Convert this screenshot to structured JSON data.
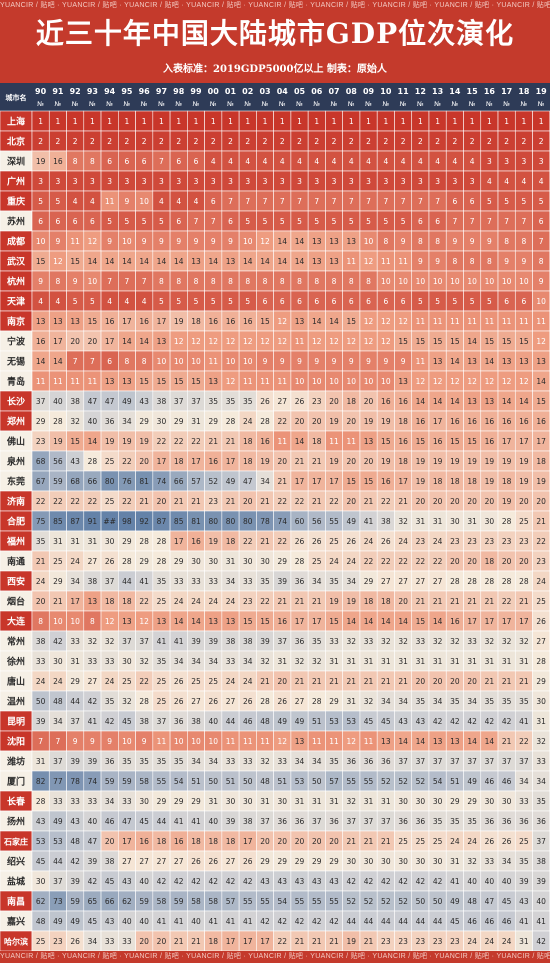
{
  "watermark": "YUANCIR / 贴吧 · ",
  "chart_data": {
    "type": "heatmap",
    "title": "近三十年中国大陆城市GDP位次演化",
    "subtitle": "入表标准：2019GDP5000亿以上  制表：原始人",
    "corner_label": "城市名",
    "rank_mark": "№",
    "x": [
      "90",
      "91",
      "92",
      "93",
      "94",
      "95",
      "96",
      "97",
      "98",
      "99",
      "00",
      "01",
      "02",
      "03",
      "04",
      "05",
      "06",
      "07",
      "08",
      "09",
      "10",
      "11",
      "12",
      "13",
      "14",
      "15",
      "16",
      "17",
      "18",
      "19"
    ],
    "cities": [
      "上海",
      "北京",
      "深圳",
      "广州",
      "重庆",
      "苏州",
      "成都",
      "武汉",
      "杭州",
      "天津",
      "南京",
      "宁波",
      "无锡",
      "青岛",
      "长沙",
      "郑州",
      "佛山",
      "泉州",
      "东莞",
      "济南",
      "合肥",
      "福州",
      "南通",
      "西安",
      "烟台",
      "大连",
      "常州",
      "徐州",
      "唐山",
      "温州",
      "昆明",
      "沈阳",
      "潍坊",
      "厦门",
      "长春",
      "扬州",
      "石家庄",
      "绍兴",
      "盐城",
      "南昌",
      "嘉兴",
      "哈尔滨"
    ],
    "ranks": [
      [
        "1",
        "1",
        "1",
        "1",
        "1",
        "1",
        "1",
        "1",
        "1",
        "1",
        "1",
        "1",
        "1",
        "1",
        "1",
        "1",
        "1",
        "1",
        "1",
        "1",
        "1",
        "1",
        "1",
        "1",
        "1",
        "1",
        "1",
        "1",
        "1",
        "1"
      ],
      [
        "2",
        "2",
        "2",
        "2",
        "2",
        "2",
        "2",
        "2",
        "2",
        "2",
        "2",
        "2",
        "2",
        "2",
        "2",
        "2",
        "2",
        "2",
        "2",
        "2",
        "2",
        "2",
        "2",
        "2",
        "2",
        "2",
        "2",
        "2",
        "2",
        "2"
      ],
      [
        "19",
        "16",
        "8",
        "8",
        "6",
        "6",
        "6",
        "7",
        "6",
        "6",
        "4",
        "4",
        "4",
        "4",
        "4",
        "4",
        "4",
        "4",
        "4",
        "4",
        "4",
        "4",
        "4",
        "4",
        "4",
        "4",
        "3",
        "3",
        "3",
        "3"
      ],
      [
        "3",
        "3",
        "3",
        "3",
        "3",
        "3",
        "3",
        "3",
        "3",
        "3",
        "3",
        "3",
        "3",
        "3",
        "3",
        "3",
        "3",
        "3",
        "3",
        "3",
        "3",
        "3",
        "3",
        "3",
        "3",
        "3",
        "4",
        "4",
        "4",
        "4"
      ],
      [
        "5",
        "5",
        "4",
        "4",
        "11",
        "9",
        "10",
        "4",
        "4",
        "4",
        "6",
        "7",
        "7",
        "7",
        "7",
        "7",
        "7",
        "7",
        "7",
        "7",
        "7",
        "7",
        "7",
        "7",
        "6",
        "6",
        "5",
        "5",
        "5",
        "5"
      ],
      [
        "6",
        "6",
        "6",
        "6",
        "5",
        "5",
        "5",
        "5",
        "6",
        "7",
        "7",
        "6",
        "5",
        "5",
        "5",
        "5",
        "5",
        "5",
        "5",
        "5",
        "5",
        "5",
        "6",
        "6",
        "7",
        "7",
        "7",
        "7",
        "7",
        "6"
      ],
      [
        "10",
        "9",
        "11",
        "12",
        "9",
        "10",
        "9",
        "9",
        "9",
        "9",
        "9",
        "9",
        "10",
        "12",
        "14",
        "14",
        "13",
        "13",
        "13",
        "10",
        "8",
        "9",
        "8",
        "8",
        "9",
        "9",
        "9",
        "8",
        "8",
        "7"
      ],
      [
        "15",
        "12",
        "15",
        "14",
        "14",
        "14",
        "14",
        "14",
        "14",
        "13",
        "14",
        "13",
        "14",
        "14",
        "14",
        "14",
        "13",
        "13",
        "11",
        "12",
        "11",
        "11",
        "9",
        "9",
        "8",
        "8",
        "8",
        "9",
        "9",
        "8"
      ],
      [
        "9",
        "8",
        "9",
        "10",
        "7",
        "7",
        "7",
        "8",
        "8",
        "8",
        "8",
        "8",
        "8",
        "8",
        "8",
        "8",
        "8",
        "8",
        "8",
        "8",
        "10",
        "10",
        "10",
        "10",
        "10",
        "10",
        "10",
        "10",
        "10",
        "9"
      ],
      [
        "4",
        "4",
        "5",
        "5",
        "4",
        "4",
        "4",
        "5",
        "5",
        "5",
        "5",
        "5",
        "5",
        "6",
        "6",
        "6",
        "6",
        "6",
        "6",
        "6",
        "6",
        "6",
        "5",
        "5",
        "5",
        "5",
        "5",
        "6",
        "6",
        "10"
      ],
      [
        "13",
        "13",
        "13",
        "15",
        "16",
        "17",
        "16",
        "17",
        "19",
        "18",
        "16",
        "16",
        "16",
        "15",
        "12",
        "13",
        "14",
        "14",
        "15",
        "12",
        "12",
        "12",
        "11",
        "11",
        "11",
        "11",
        "11",
        "11",
        "11",
        "11"
      ],
      [
        "16",
        "17",
        "20",
        "20",
        "17",
        "14",
        "14",
        "13",
        "12",
        "12",
        "12",
        "12",
        "12",
        "12",
        "12",
        "11",
        "12",
        "12",
        "12",
        "12",
        "12",
        "15",
        "15",
        "15",
        "15",
        "14",
        "15",
        "15",
        "15",
        "12"
      ],
      [
        "14",
        "14",
        "7",
        "7",
        "6",
        "8",
        "8",
        "10",
        "10",
        "10",
        "11",
        "10",
        "10",
        "9",
        "9",
        "9",
        "9",
        "9",
        "9",
        "9",
        "9",
        "9",
        "11",
        "13",
        "14",
        "13",
        "14",
        "13",
        "13",
        "13"
      ],
      [
        "11",
        "11",
        "11",
        "11",
        "13",
        "13",
        "15",
        "15",
        "15",
        "15",
        "13",
        "12",
        "11",
        "11",
        "11",
        "10",
        "10",
        "10",
        "10",
        "10",
        "10",
        "13",
        "12",
        "12",
        "12",
        "12",
        "12",
        "12",
        "12",
        "14"
      ],
      [
        "37",
        "40",
        "38",
        "47",
        "47",
        "49",
        "43",
        "38",
        "37",
        "37",
        "35",
        "35",
        "35",
        "26",
        "27",
        "26",
        "23",
        "20",
        "18",
        "20",
        "16",
        "16",
        "14",
        "14",
        "14",
        "13",
        "13",
        "14",
        "14",
        "15"
      ],
      [
        "29",
        "28",
        "32",
        "40",
        "36",
        "34",
        "29",
        "30",
        "29",
        "31",
        "29",
        "28",
        "24",
        "28",
        "22",
        "20",
        "20",
        "19",
        "20",
        "19",
        "19",
        "18",
        "16",
        "17",
        "16",
        "16",
        "16",
        "16",
        "16",
        "16"
      ],
      [
        "23",
        "19",
        "15",
        "14",
        "19",
        "19",
        "19",
        "22",
        "22",
        "22",
        "21",
        "21",
        "18",
        "16",
        "11",
        "14",
        "18",
        "11",
        "11",
        "13",
        "15",
        "16",
        "15",
        "16",
        "15",
        "15",
        "16",
        "17",
        "17",
        "17"
      ],
      [
        "68",
        "56",
        "43",
        "28",
        "25",
        "22",
        "20",
        "17",
        "18",
        "17",
        "16",
        "17",
        "18",
        "19",
        "20",
        "21",
        "21",
        "19",
        "20",
        "20",
        "19",
        "18",
        "19",
        "19",
        "19",
        "19",
        "19",
        "19",
        "19",
        "18"
      ],
      [
        "67",
        "59",
        "68",
        "66",
        "80",
        "76",
        "81",
        "74",
        "66",
        "57",
        "52",
        "49",
        "47",
        "34",
        "21",
        "17",
        "17",
        "17",
        "15",
        "15",
        "16",
        "17",
        "19",
        "18",
        "18",
        "18",
        "19",
        "18",
        "19",
        "19"
      ],
      [
        "22",
        "22",
        "22",
        "22",
        "25",
        "22",
        "21",
        "20",
        "21",
        "21",
        "23",
        "21",
        "20",
        "21",
        "22",
        "22",
        "21",
        "22",
        "20",
        "21",
        "22",
        "21",
        "20",
        "20",
        "20",
        "20",
        "20",
        "19",
        "20",
        "20"
      ],
      [
        "75",
        "85",
        "87",
        "91",
        "##",
        "98",
        "92",
        "87",
        "85",
        "81",
        "80",
        "80",
        "80",
        "78",
        "74",
        "60",
        "56",
        "55",
        "49",
        "41",
        "38",
        "32",
        "31",
        "31",
        "30",
        "31",
        "30",
        "28",
        "25",
        "21"
      ],
      [
        "35",
        "31",
        "31",
        "31",
        "30",
        "29",
        "28",
        "28",
        "17",
        "16",
        "19",
        "18",
        "22",
        "21",
        "22",
        "26",
        "26",
        "25",
        "26",
        "24",
        "26",
        "24",
        "23",
        "24",
        "23",
        "23",
        "23",
        "23",
        "23",
        "22"
      ],
      [
        "21",
        "25",
        "24",
        "27",
        "26",
        "28",
        "29",
        "28",
        "29",
        "30",
        "30",
        "31",
        "30",
        "30",
        "29",
        "28",
        "25",
        "24",
        "24",
        "22",
        "22",
        "22",
        "22",
        "22",
        "20",
        "20",
        "18",
        "20",
        "20",
        "23"
      ],
      [
        "24",
        "29",
        "34",
        "38",
        "37",
        "44",
        "41",
        "35",
        "33",
        "33",
        "33",
        "34",
        "33",
        "35",
        "39",
        "36",
        "34",
        "35",
        "34",
        "29",
        "27",
        "27",
        "27",
        "27",
        "28",
        "28",
        "28",
        "28",
        "28",
        "24"
      ],
      [
        "20",
        "21",
        "17",
        "13",
        "18",
        "18",
        "22",
        "25",
        "24",
        "24",
        "24",
        "24",
        "23",
        "22",
        "21",
        "21",
        "21",
        "19",
        "19",
        "18",
        "18",
        "20",
        "21",
        "21",
        "21",
        "21",
        "21",
        "22",
        "21",
        "25"
      ],
      [
        "8",
        "10",
        "10",
        "8",
        "12",
        "13",
        "12",
        "13",
        "14",
        "14",
        "13",
        "13",
        "15",
        "15",
        "16",
        "17",
        "17",
        "15",
        "14",
        "14",
        "14",
        "14",
        "15",
        "14",
        "16",
        "17",
        "17",
        "17",
        "17",
        "26"
      ],
      [
        "38",
        "42",
        "33",
        "32",
        "32",
        "37",
        "37",
        "41",
        "41",
        "39",
        "39",
        "38",
        "38",
        "39",
        "37",
        "36",
        "35",
        "33",
        "32",
        "33",
        "32",
        "32",
        "33",
        "32",
        "32",
        "33",
        "32",
        "32",
        "32",
        "27"
      ],
      [
        "33",
        "30",
        "31",
        "33",
        "33",
        "30",
        "32",
        "35",
        "34",
        "34",
        "34",
        "33",
        "34",
        "32",
        "31",
        "32",
        "32",
        "31",
        "31",
        "31",
        "31",
        "31",
        "31",
        "31",
        "31",
        "31",
        "31",
        "31",
        "31",
        "28"
      ],
      [
        "24",
        "24",
        "29",
        "27",
        "24",
        "25",
        "22",
        "25",
        "26",
        "25",
        "25",
        "24",
        "24",
        "21",
        "20",
        "21",
        "21",
        "21",
        "21",
        "21",
        "21",
        "21",
        "20",
        "20",
        "20",
        "20",
        "21",
        "21",
        "21",
        "29"
      ],
      [
        "50",
        "48",
        "44",
        "42",
        "35",
        "32",
        "28",
        "25",
        "26",
        "27",
        "26",
        "27",
        "26",
        "28",
        "26",
        "27",
        "28",
        "29",
        "31",
        "32",
        "34",
        "34",
        "35",
        "34",
        "35",
        "34",
        "35",
        "35",
        "35",
        "30"
      ],
      [
        "39",
        "34",
        "37",
        "41",
        "42",
        "45",
        "38",
        "37",
        "36",
        "38",
        "40",
        "44",
        "46",
        "48",
        "49",
        "49",
        "51",
        "53",
        "53",
        "45",
        "45",
        "43",
        "43",
        "42",
        "42",
        "42",
        "42",
        "42",
        "41",
        "31"
      ],
      [
        "7",
        "7",
        "9",
        "9",
        "9",
        "10",
        "9",
        "11",
        "10",
        "10",
        "10",
        "11",
        "11",
        "11",
        "12",
        "13",
        "11",
        "11",
        "12",
        "11",
        "13",
        "14",
        "14",
        "13",
        "13",
        "14",
        "14",
        "21",
        "22",
        "32"
      ],
      [
        "31",
        "37",
        "39",
        "39",
        "36",
        "35",
        "35",
        "35",
        "35",
        "34",
        "34",
        "33",
        "33",
        "32",
        "33",
        "34",
        "34",
        "35",
        "36",
        "36",
        "36",
        "37",
        "37",
        "37",
        "37",
        "37",
        "37",
        "37",
        "37",
        "33"
      ],
      [
        "82",
        "77",
        "78",
        "74",
        "59",
        "59",
        "58",
        "55",
        "54",
        "51",
        "50",
        "51",
        "50",
        "48",
        "51",
        "53",
        "50",
        "57",
        "55",
        "55",
        "52",
        "52",
        "52",
        "54",
        "51",
        "49",
        "46",
        "46",
        "34",
        "34"
      ],
      [
        "28",
        "33",
        "33",
        "33",
        "34",
        "33",
        "30",
        "29",
        "29",
        "29",
        "31",
        "30",
        "30",
        "31",
        "30",
        "31",
        "31",
        "31",
        "32",
        "31",
        "31",
        "30",
        "30",
        "30",
        "29",
        "29",
        "30",
        "30",
        "33",
        "35"
      ],
      [
        "43",
        "49",
        "43",
        "40",
        "46",
        "47",
        "45",
        "44",
        "41",
        "41",
        "40",
        "39",
        "38",
        "37",
        "36",
        "36",
        "37",
        "36",
        "37",
        "37",
        "37",
        "36",
        "36",
        "35",
        "35",
        "35",
        "36",
        "36",
        "36",
        "36"
      ],
      [
        "53",
        "53",
        "48",
        "47",
        "20",
        "17",
        "16",
        "18",
        "16",
        "18",
        "18",
        "18",
        "17",
        "20",
        "20",
        "20",
        "20",
        "20",
        "21",
        "21",
        "21",
        "25",
        "25",
        "25",
        "24",
        "24",
        "26",
        "26",
        "25",
        "37"
      ],
      [
        "45",
        "44",
        "42",
        "39",
        "38",
        "27",
        "27",
        "27",
        "27",
        "26",
        "26",
        "27",
        "26",
        "29",
        "29",
        "29",
        "29",
        "29",
        "30",
        "30",
        "30",
        "30",
        "30",
        "30",
        "31",
        "32",
        "33",
        "34",
        "35",
        "38"
      ],
      [
        "30",
        "37",
        "39",
        "42",
        "45",
        "43",
        "40",
        "42",
        "42",
        "42",
        "42",
        "42",
        "42",
        "43",
        "43",
        "43",
        "43",
        "43",
        "42",
        "42",
        "42",
        "42",
        "42",
        "42",
        "41",
        "40",
        "40",
        "40",
        "39",
        "39"
      ],
      [
        "62",
        "73",
        "59",
        "65",
        "66",
        "62",
        "59",
        "58",
        "59",
        "58",
        "58",
        "57",
        "55",
        "55",
        "54",
        "55",
        "55",
        "55",
        "52",
        "52",
        "52",
        "52",
        "50",
        "50",
        "49",
        "48",
        "47",
        "45",
        "43",
        "40"
      ],
      [
        "48",
        "49",
        "49",
        "45",
        "43",
        "40",
        "40",
        "41",
        "41",
        "40",
        "41",
        "41",
        "41",
        "42",
        "42",
        "42",
        "42",
        "42",
        "44",
        "44",
        "44",
        "44",
        "44",
        "44",
        "45",
        "46",
        "46",
        "46",
        "41",
        "41"
      ],
      [
        "25",
        "23",
        "26",
        "34",
        "33",
        "33",
        "20",
        "20",
        "21",
        "21",
        "18",
        "17",
        "17",
        "17",
        "22",
        "21",
        "21",
        "21",
        "19",
        "21",
        "23",
        "23",
        "23",
        "23",
        "23",
        "24",
        "24",
        "24",
        "31",
        "42"
      ]
    ],
    "color_scale": {
      "top": "#c8362a",
      "upper": "#ee9c80",
      "mid": "#f5eadb",
      "lower": "#c8cbd2",
      "bottom": "#6482a8"
    },
    "colors": {
      "header_bg": "#c43a2c",
      "axis_row_bg": "#2e3b57",
      "label_red_bg": "#c8362a",
      "label_light_bg": "#f6f0e6"
    }
  }
}
